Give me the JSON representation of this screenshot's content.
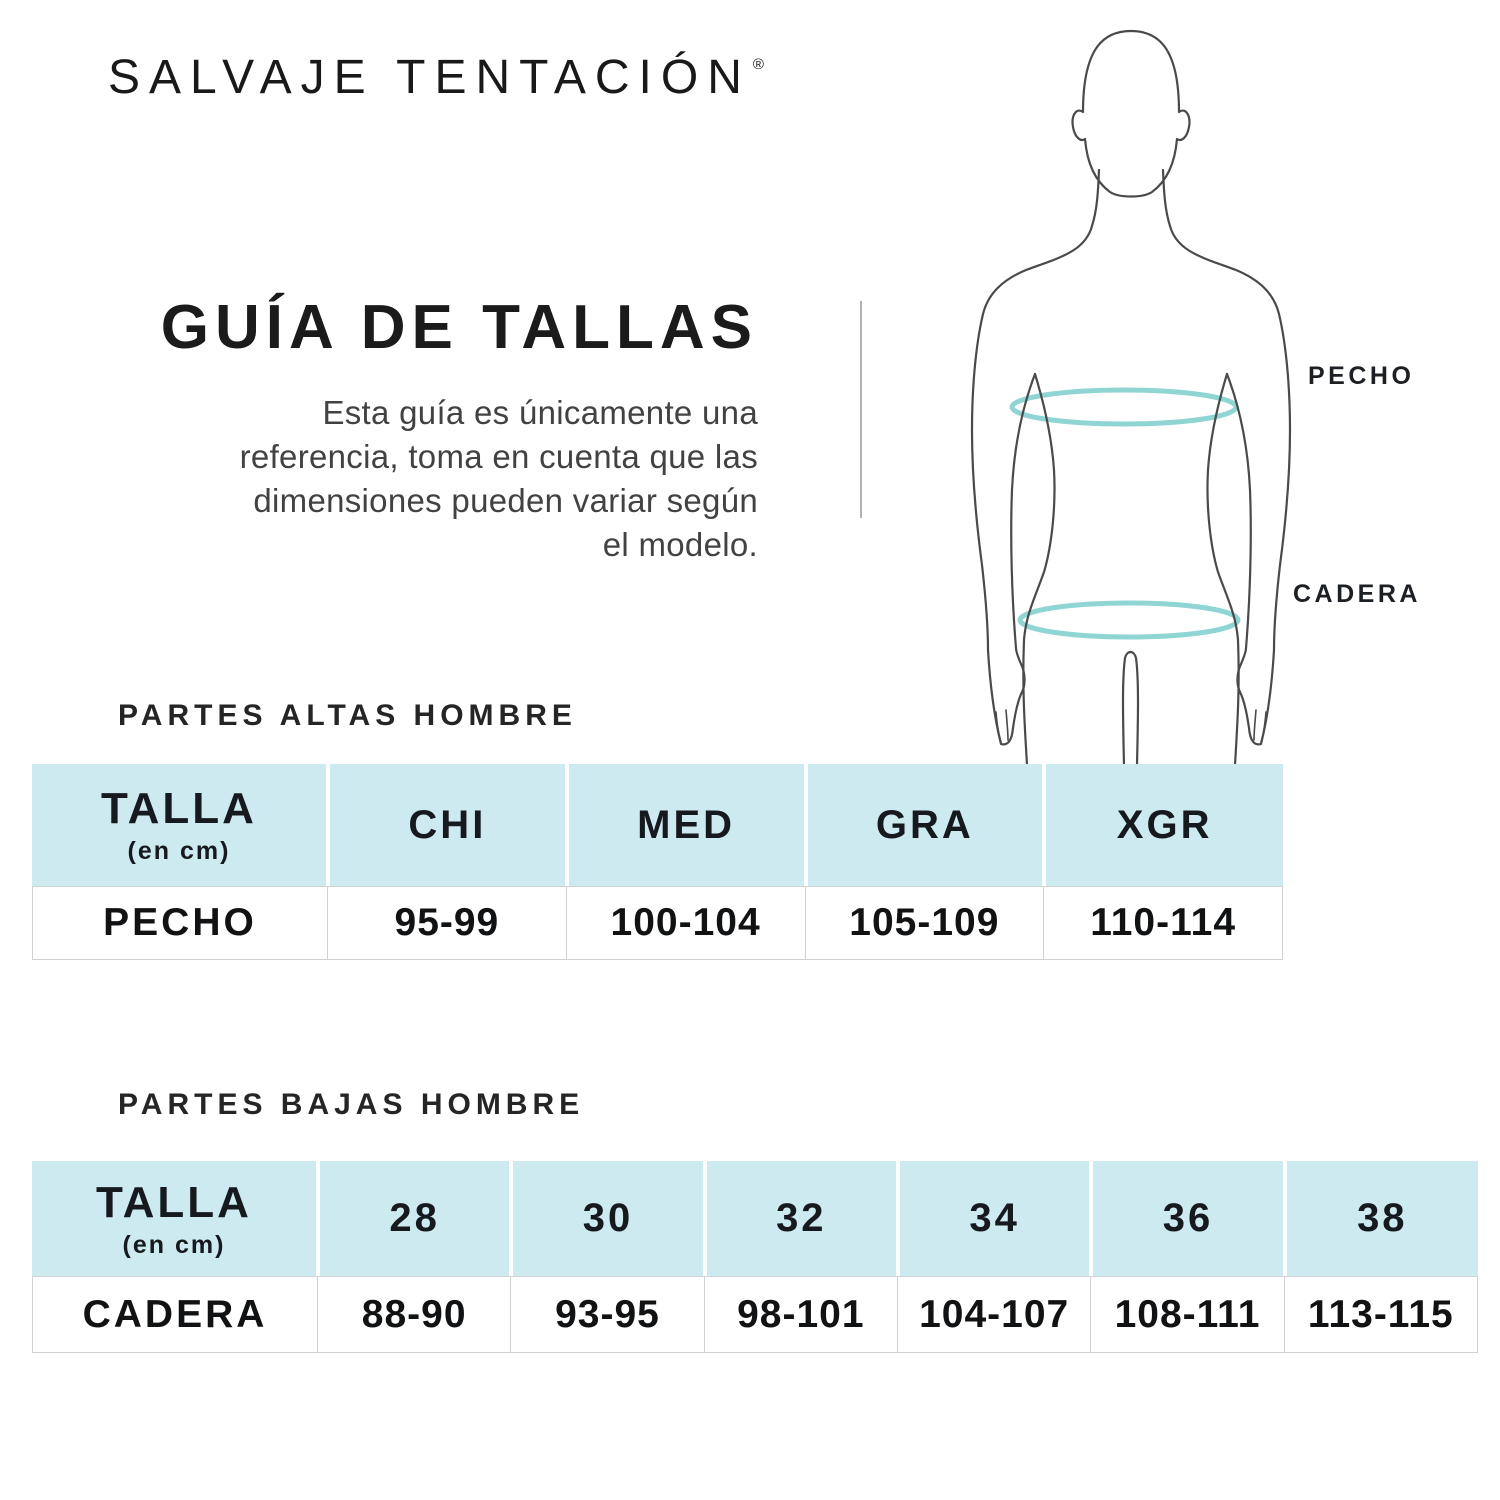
{
  "brand": {
    "name": "SALVAJE TENTACIÓN",
    "trademark": "®"
  },
  "intro": {
    "title": "GUÍA DE TALLAS",
    "lines": [
      "Esta guía es únicamente una",
      "referencia, toma en cuenta que las",
      "dimensiones pueden variar según",
      "el modelo."
    ]
  },
  "figure": {
    "chest_label": "PECHO",
    "hip_label": "CADERA",
    "band_color": "#8fd5d3",
    "outline_color": "#4a4a4a"
  },
  "tables": [
    {
      "section_title": "PARTES ALTAS HOMBRE",
      "measure_header": "TALLA",
      "measure_unit": "(en cm)",
      "sizes": [
        "CHI",
        "MED",
        "GRA",
        "XGR"
      ],
      "rows": [
        {
          "label": "PECHO",
          "values": [
            "95-99",
            "100-104",
            "105-109",
            "110-114"
          ]
        }
      ]
    },
    {
      "section_title": "PARTES BAJAS HOMBRE",
      "measure_header": "TALLA",
      "measure_unit": "(en cm)",
      "sizes": [
        "28",
        "30",
        "32",
        "34",
        "36",
        "38"
      ],
      "rows": [
        {
          "label": "CADERA",
          "values": [
            "88-90",
            "93-95",
            "98-101",
            "104-107",
            "108-111",
            "113-115"
          ]
        }
      ]
    }
  ],
  "colors": {
    "header_bg": "#cdeaf0",
    "cell_border": "#d2d2d2",
    "divider": "#b2b2b2"
  }
}
